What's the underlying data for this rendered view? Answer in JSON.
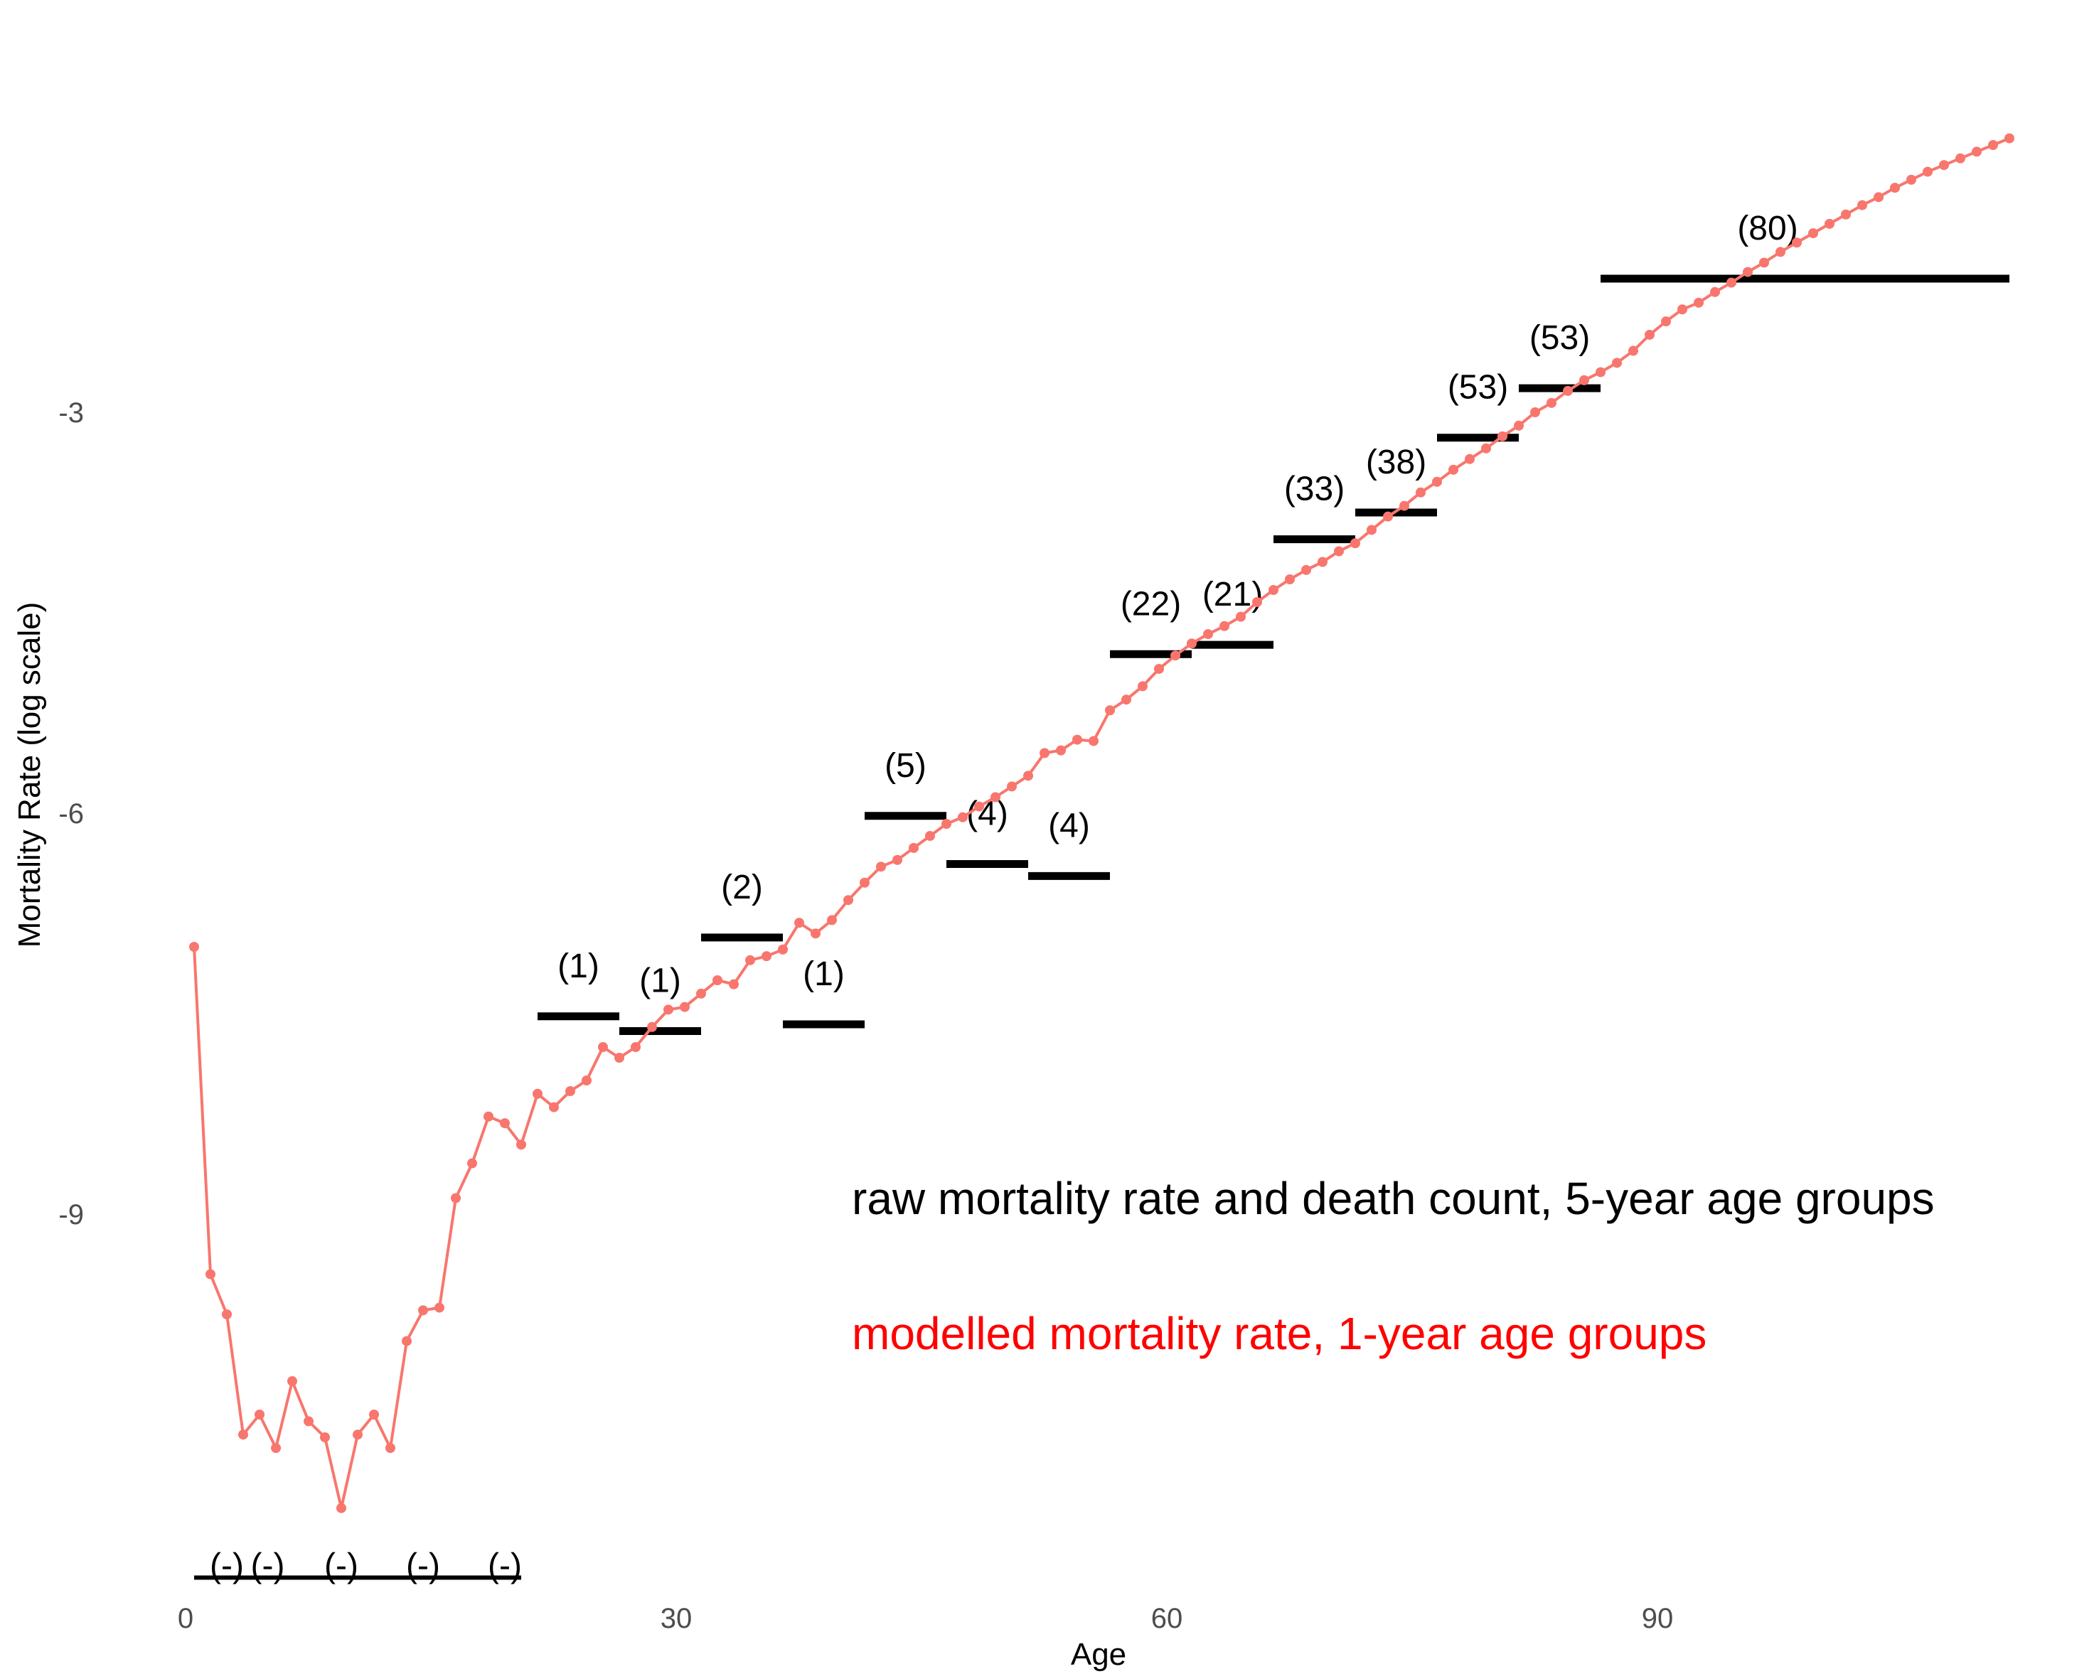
{
  "chart_data": {
    "type": "line",
    "xlabel": "Age",
    "ylabel": "Mortality Rate (log scale)",
    "x_ticks": [
      0,
      30,
      60,
      90
    ],
    "y_ticks": [
      -3,
      -6,
      -9
    ],
    "xlim": [
      -0.5,
      113.5
    ],
    "ylim": [
      -11.9,
      -0.3
    ],
    "grid": false,
    "legend_placement": "bottom-right (inside)",
    "colors": {
      "modelled": "#F8766D",
      "raw": "#000000",
      "legend_modelled": "#FF0000"
    },
    "legend": {
      "raw": "raw mortality rate and death count, 5-year age groups",
      "modelled": "modelled mortality rate, 1-year age groups"
    },
    "series": [
      {
        "kind": "modelled",
        "x": [
          0,
          1,
          2,
          3,
          4,
          5,
          6,
          7,
          8,
          9,
          10,
          11,
          12,
          13,
          14,
          15,
          16,
          17,
          18,
          19,
          20,
          21,
          22,
          23,
          24,
          25,
          26,
          27,
          28,
          29,
          30,
          31,
          32,
          33,
          34,
          35,
          36,
          37,
          38,
          39,
          40,
          41,
          42,
          43,
          44,
          45,
          46,
          47,
          48,
          49,
          50,
          51,
          52,
          53,
          54,
          55,
          56,
          57,
          58,
          59,
          60,
          61,
          62,
          63,
          64,
          65,
          66,
          67,
          68,
          69,
          70,
          71,
          72,
          73,
          74,
          75,
          76,
          77,
          78,
          79,
          80,
          81,
          82,
          83,
          84,
          85,
          86,
          87,
          88,
          89,
          90,
          91,
          92,
          93,
          94,
          95,
          96,
          97,
          98,
          99,
          100,
          101,
          102,
          103,
          104,
          105,
          106,
          107,
          108,
          109,
          110,
          111
        ],
        "y": [
          -7.0,
          -9.45,
          -9.75,
          -10.65,
          -10.5,
          -10.75,
          -10.25,
          -10.55,
          -10.67,
          -11.2,
          -10.65,
          -10.5,
          -10.75,
          -9.95,
          -9.72,
          -9.7,
          -8.88,
          -8.62,
          -8.27,
          -8.32,
          -8.48,
          -8.1,
          -8.2,
          -8.08,
          -8.0,
          -7.75,
          -7.83,
          -7.75,
          -7.6,
          -7.47,
          -7.45,
          -7.35,
          -7.25,
          -7.28,
          -7.1,
          -7.07,
          -7.02,
          -6.82,
          -6.9,
          -6.8,
          -6.65,
          -6.52,
          -6.4,
          -6.35,
          -6.26,
          -6.17,
          -6.08,
          -6.03,
          -5.95,
          -5.88,
          -5.8,
          -5.72,
          -5.55,
          -5.53,
          -5.45,
          -5.46,
          -5.23,
          -5.15,
          -5.05,
          -4.92,
          -4.82,
          -4.73,
          -4.66,
          -4.6,
          -4.53,
          -4.42,
          -4.33,
          -4.25,
          -4.18,
          -4.12,
          -4.04,
          -3.98,
          -3.88,
          -3.78,
          -3.7,
          -3.6,
          -3.52,
          -3.43,
          -3.35,
          -3.27,
          -3.18,
          -3.1,
          -3.0,
          -2.93,
          -2.84,
          -2.76,
          -2.7,
          -2.63,
          -2.54,
          -2.42,
          -2.32,
          -2.23,
          -2.18,
          -2.1,
          -2.03,
          -1.95,
          -1.88,
          -1.8,
          -1.73,
          -1.66,
          -1.59,
          -1.52,
          -1.45,
          -1.39,
          -1.32,
          -1.26,
          -1.2,
          -1.15,
          -1.1,
          -1.05,
          -1.0,
          -0.95
        ]
      }
    ],
    "raw_segments": [
      {
        "x0": 0,
        "x1": 20,
        "y": -11.72,
        "label": ""
      },
      {
        "x0": 21,
        "x1": 26,
        "y": -7.52,
        "label": "(1)"
      },
      {
        "x0": 26,
        "x1": 31,
        "y": -7.63,
        "label": "(1)"
      },
      {
        "x0": 31,
        "x1": 36,
        "y": -6.93,
        "label": "(2)"
      },
      {
        "x0": 36,
        "x1": 41,
        "y": -7.58,
        "label": "(1)"
      },
      {
        "x0": 41,
        "x1": 46,
        "y": -6.02,
        "label": "(5)"
      },
      {
        "x0": 46,
        "x1": 51,
        "y": -6.38,
        "label": "(4)"
      },
      {
        "x0": 51,
        "x1": 56,
        "y": -6.47,
        "label": "(4)"
      },
      {
        "x0": 56,
        "x1": 61,
        "y": -4.81,
        "label": "(22)"
      },
      {
        "x0": 61,
        "x1": 66,
        "y": -4.74,
        "label": "(21)"
      },
      {
        "x0": 66,
        "x1": 71,
        "y": -3.95,
        "label": "(33)"
      },
      {
        "x0": 71,
        "x1": 76,
        "y": -3.75,
        "label": "(38)"
      },
      {
        "x0": 76,
        "x1": 81,
        "y": -3.19,
        "label": "(53)"
      },
      {
        "x0": 81,
        "x1": 86,
        "y": -2.82,
        "label": "(53)"
      },
      {
        "x0": 86,
        "x1": 111,
        "y": -2.0,
        "label": "(80)"
      }
    ],
    "small_labels": [
      {
        "x": 2,
        "text": "(-)"
      },
      {
        "x": 4.5,
        "text": "(-)"
      },
      {
        "x": 9,
        "text": "(-)"
      },
      {
        "x": 14,
        "text": "(-)"
      },
      {
        "x": 19,
        "text": "(-)"
      }
    ],
    "small_labels_y": -11.63
  }
}
